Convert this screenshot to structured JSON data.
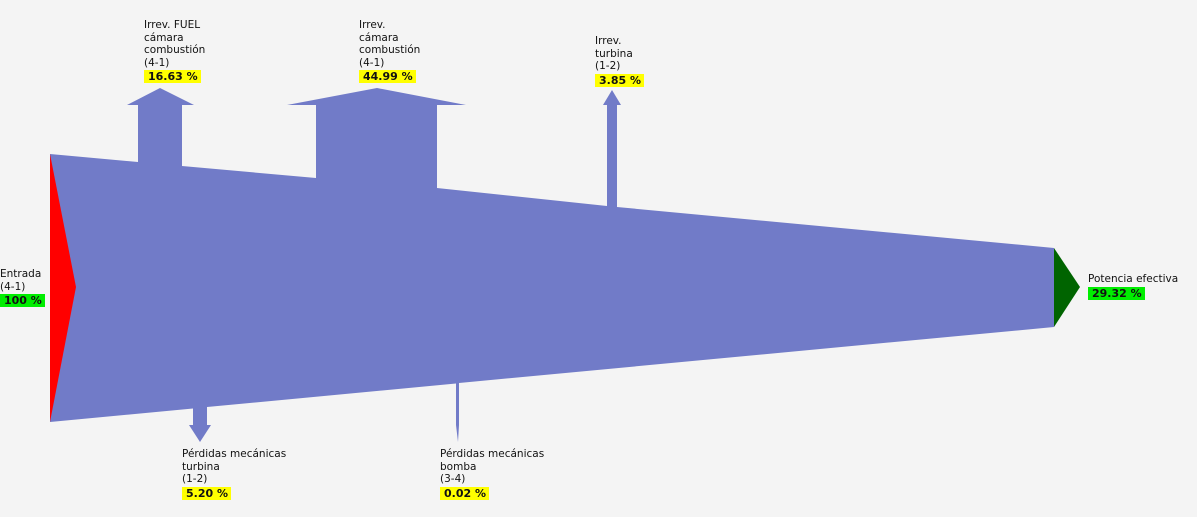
{
  "colors": {
    "flow": "#717bc8",
    "input": "#ff0000",
    "output": "#006400",
    "loss_badge": "#ffff00",
    "io_badge": "#00ee00"
  },
  "input": {
    "name": "Entrada",
    "stage": "(4-1)",
    "value": "100 %"
  },
  "output": {
    "name": "Potencia efectiva",
    "value": "29.32 %"
  },
  "losses_up": [
    {
      "lines": [
        "Irrev. FUEL",
        "cámara",
        "combustión",
        "(4-1)"
      ],
      "value": "16.63 %"
    },
    {
      "lines": [
        "Irrev.",
        "cámara",
        "combustión",
        "(4-1)"
      ],
      "value": "44.99 %"
    },
    {
      "lines": [
        "Irrev.",
        "turbina",
        "(1-2)"
      ],
      "value": "3.85 %"
    }
  ],
  "losses_down": [
    {
      "lines": [
        "Pérdidas mecánicas",
        "turbina",
        "(1-2)"
      ],
      "value": "5.20 %"
    },
    {
      "lines": [
        "Pérdidas mecánicas",
        "bomba",
        "(3-4)"
      ],
      "value": "0.02 %"
    }
  ]
}
